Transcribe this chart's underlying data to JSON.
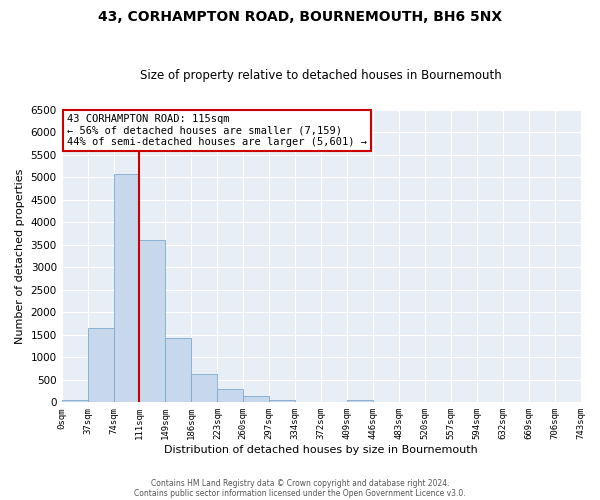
{
  "title": "43, CORHAMPTON ROAD, BOURNEMOUTH, BH6 5NX",
  "subtitle": "Size of property relative to detached houses in Bournemouth",
  "xlabel": "Distribution of detached houses by size in Bournemouth",
  "ylabel": "Number of detached properties",
  "bin_edges": [
    0,
    37,
    74,
    111,
    148,
    185,
    222,
    259,
    296,
    333,
    370,
    407,
    444,
    481,
    518,
    555,
    592,
    629,
    666,
    703,
    740
  ],
  "bin_labels": [
    "0sqm",
    "37sqm",
    "74sqm",
    "111sqm",
    "149sqm",
    "186sqm",
    "223sqm",
    "260sqm",
    "297sqm",
    "334sqm",
    "372sqm",
    "409sqm",
    "446sqm",
    "483sqm",
    "520sqm",
    "557sqm",
    "594sqm",
    "632sqm",
    "669sqm",
    "706sqm",
    "743sqm"
  ],
  "counts": [
    60,
    1650,
    5080,
    3600,
    1420,
    620,
    290,
    140,
    50,
    0,
    0,
    50,
    0,
    0,
    0,
    0,
    0,
    0,
    0,
    0
  ],
  "bar_color": "#c8d8ec",
  "bar_edge_color": "#7aaacc",
  "vline_x": 111,
  "vline_color": "#cc0000",
  "annotation_text": "43 CORHAMPTON ROAD: 115sqm\n← 56% of detached houses are smaller (7,159)\n44% of semi-detached houses are larger (5,601) →",
  "annotation_box_facecolor": "#ffffff",
  "annotation_box_edgecolor": "#cc0000",
  "ylim": [
    0,
    6500
  ],
  "yticks": [
    0,
    500,
    1000,
    1500,
    2000,
    2500,
    3000,
    3500,
    4000,
    4500,
    5000,
    5500,
    6000,
    6500
  ],
  "xlim": [
    0,
    740
  ],
  "footer1": "Contains HM Land Registry data © Crown copyright and database right 2024.",
  "footer2": "Contains public sector information licensed under the Open Government Licence v3.0.",
  "fig_facecolor": "#ffffff",
  "plot_facecolor": "#e8eef5"
}
